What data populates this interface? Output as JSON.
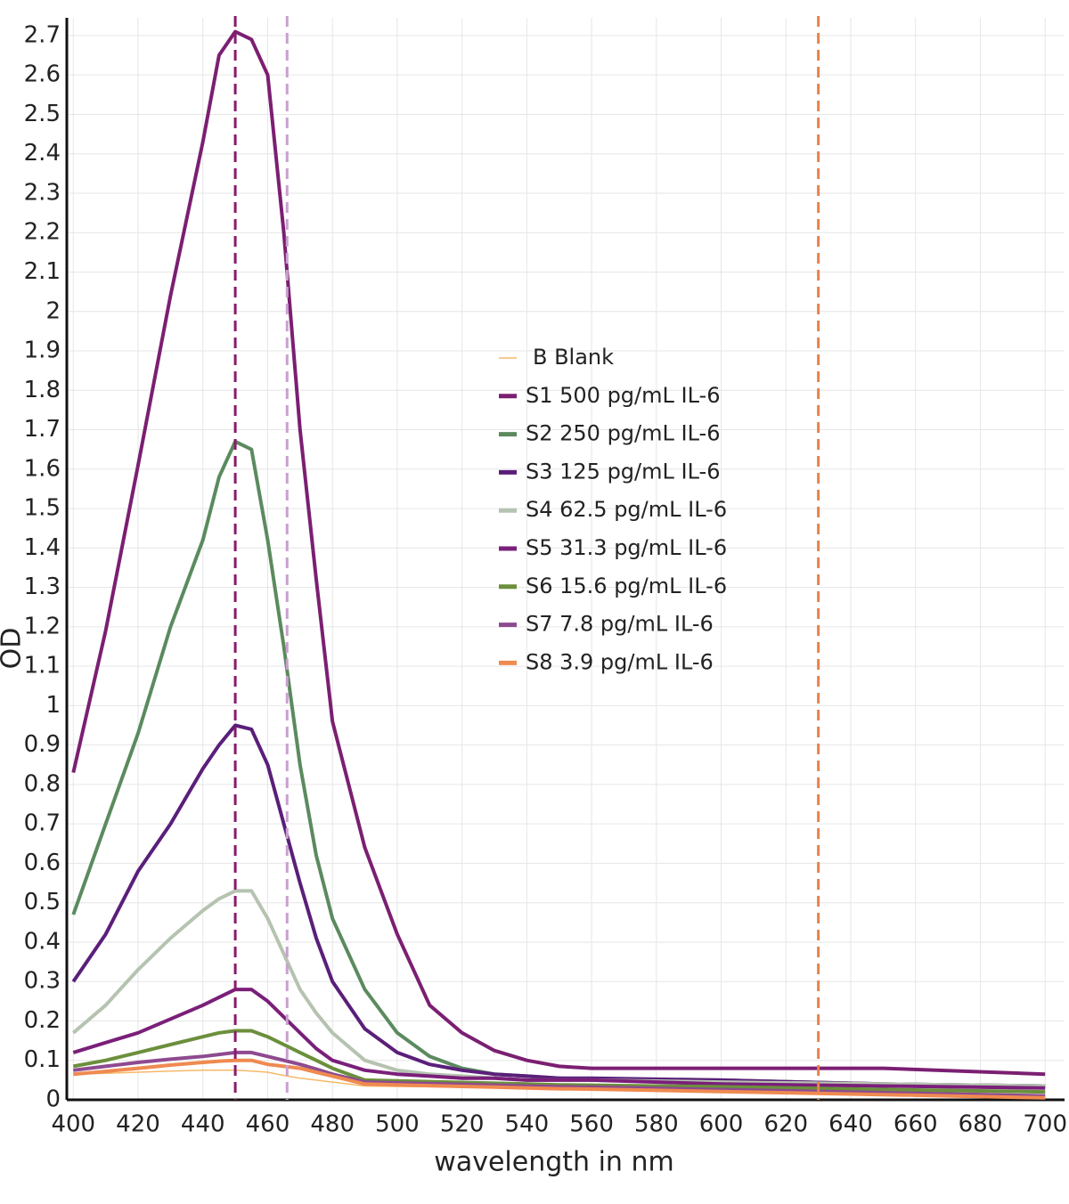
{
  "chart_data": {
    "type": "line",
    "xlabel": "wavelength in nm",
    "ylabel": "OD",
    "x": [
      400,
      410,
      420,
      430,
      440,
      445,
      450,
      455,
      460,
      465,
      470,
      475,
      480,
      490,
      500,
      510,
      520,
      530,
      540,
      550,
      560,
      600,
      650,
      700
    ],
    "series": [
      {
        "name": "B Blank",
        "color": "#f5b96a",
        "values": [
          0.065,
          0.067,
          0.07,
          0.073,
          0.075,
          0.075,
          0.075,
          0.073,
          0.07,
          0.062,
          0.055,
          0.05,
          0.045,
          0.035,
          0.034,
          0.033,
          0.032,
          0.031,
          0.03,
          0.029,
          0.028,
          0.022,
          0.016,
          0.01
        ]
      },
      {
        "name": "S1 500 pg/mL IL-6",
        "color": "#7b1f72",
        "values": [
          0.83,
          1.19,
          1.61,
          2.04,
          2.43,
          2.65,
          2.71,
          2.69,
          2.6,
          2.2,
          1.7,
          1.32,
          0.96,
          0.64,
          0.42,
          0.24,
          0.17,
          0.125,
          0.1,
          0.085,
          0.08,
          0.08,
          0.08,
          0.065
        ]
      },
      {
        "name": "S2 250 pg/mL IL-6",
        "color": "#5b8a5e",
        "values": [
          0.47,
          0.7,
          0.93,
          1.2,
          1.42,
          1.58,
          1.67,
          1.65,
          1.42,
          1.15,
          0.85,
          0.62,
          0.46,
          0.28,
          0.17,
          0.11,
          0.08,
          0.065,
          0.06,
          0.055,
          0.05,
          0.05,
          0.04,
          0.035
        ]
      },
      {
        "name": "S3 125 pg/mL IL-6",
        "color": "#5a1f7a",
        "values": [
          0.3,
          0.42,
          0.58,
          0.7,
          0.84,
          0.9,
          0.95,
          0.94,
          0.85,
          0.7,
          0.55,
          0.41,
          0.3,
          0.18,
          0.12,
          0.09,
          0.075,
          0.065,
          0.06,
          0.055,
          0.055,
          0.05,
          0.04,
          0.035
        ]
      },
      {
        "name": "S4 62.5 pg/mL IL-6",
        "color": "#b5c3b0",
        "values": [
          0.17,
          0.24,
          0.33,
          0.41,
          0.48,
          0.51,
          0.53,
          0.53,
          0.46,
          0.37,
          0.28,
          0.22,
          0.17,
          0.1,
          0.075,
          0.065,
          0.06,
          0.055,
          0.05,
          0.05,
          0.05,
          0.045,
          0.04,
          0.035
        ]
      },
      {
        "name": "S5 31.3 pg/mL IL-6",
        "color": "#7a1f7a",
        "values": [
          0.12,
          0.145,
          0.17,
          0.205,
          0.24,
          0.26,
          0.28,
          0.28,
          0.25,
          0.21,
          0.17,
          0.13,
          0.1,
          0.075,
          0.065,
          0.06,
          0.055,
          0.055,
          0.05,
          0.05,
          0.05,
          0.04,
          0.035,
          0.03
        ]
      },
      {
        "name": "S6 15.6 pg/mL IL-6",
        "color": "#6b8f3c",
        "values": [
          0.085,
          0.1,
          0.12,
          0.14,
          0.16,
          0.17,
          0.175,
          0.175,
          0.16,
          0.14,
          0.12,
          0.1,
          0.08,
          0.05,
          0.048,
          0.046,
          0.044,
          0.042,
          0.04,
          0.038,
          0.037,
          0.033,
          0.026,
          0.02
        ]
      },
      {
        "name": "S7 7.8 pg/mL IL-6",
        "color": "#8e4a90",
        "values": [
          0.075,
          0.085,
          0.095,
          0.103,
          0.11,
          0.115,
          0.12,
          0.12,
          0.11,
          0.1,
          0.09,
          0.078,
          0.065,
          0.045,
          0.043,
          0.041,
          0.039,
          0.037,
          0.035,
          0.033,
          0.032,
          0.026,
          0.018,
          0.01
        ]
      },
      {
        "name": "S8 3.9 pg/mL IL-6",
        "color": "#ef8a50",
        "values": [
          0.065,
          0.072,
          0.08,
          0.088,
          0.095,
          0.098,
          0.1,
          0.1,
          0.09,
          0.085,
          0.08,
          0.07,
          0.06,
          0.04,
          0.038,
          0.036,
          0.034,
          0.032,
          0.03,
          0.028,
          0.027,
          0.021,
          0.013,
          0.005
        ]
      }
    ],
    "vlines": [
      {
        "x": 450,
        "color": "#8b1a6b"
      },
      {
        "x": 466,
        "color": "#c9a0cf"
      },
      {
        "x": 630,
        "color": "#e8824a"
      }
    ],
    "xlim": [
      398,
      706
    ],
    "ylim": [
      0,
      2.745
    ],
    "xticks": [
      400,
      420,
      440,
      460,
      480,
      500,
      520,
      540,
      560,
      580,
      600,
      620,
      640,
      660,
      680,
      700
    ],
    "yticks": [
      0,
      0.1,
      0.2,
      0.3,
      0.4,
      0.5,
      0.6,
      0.7,
      0.8,
      0.9,
      1,
      1.1,
      1.2,
      1.3,
      1.4,
      1.5,
      1.6,
      1.7,
      1.8,
      1.9,
      2,
      2.1,
      2.2,
      2.3,
      2.4,
      2.5,
      2.6,
      2.7
    ],
    "grid": true,
    "legend": "center"
  }
}
